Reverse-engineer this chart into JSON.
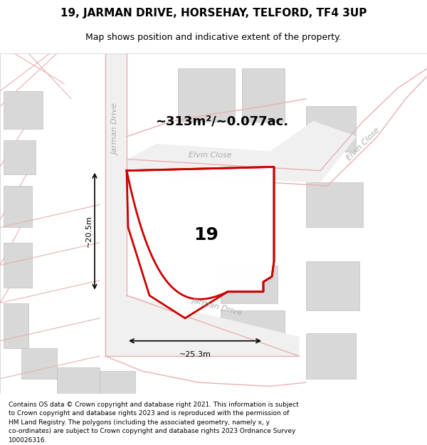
{
  "title_line1": "19, JARMAN DRIVE, HORSEHAY, TELFORD, TF4 3UP",
  "title_line2": "Map shows position and indicative extent of the property.",
  "footer_text": "Contains OS data © Crown copyright and database right 2021. This information is subject\nto Crown copyright and database rights 2023 and is reproduced with the permission of\nHM Land Registry. The polygons (including the associated geometry, namely x, y\nco-ordinates) are subject to Crown copyright and database rights 2023 Ordnance Survey\n100026316.",
  "bg_color": "#f5f5f5",
  "map_bg": "#ffffff",
  "road_fill": "#e8e8e8",
  "building_fill": "#d0d0d0",
  "road_line_color": "#c0a0a0",
  "plot_line_color": "#cc0000",
  "plot_fill": "#ffffff",
  "area_text": "~313m²/~0.077ac.",
  "number_text": "19",
  "dim_width": "~25.3m",
  "dim_height": "~20.5m",
  "street_label1": "Jarman Drive",
  "street_label2": "Elvin Close",
  "street_label3": "Jarman Drive",
  "street_label4": "Elvin Close"
}
